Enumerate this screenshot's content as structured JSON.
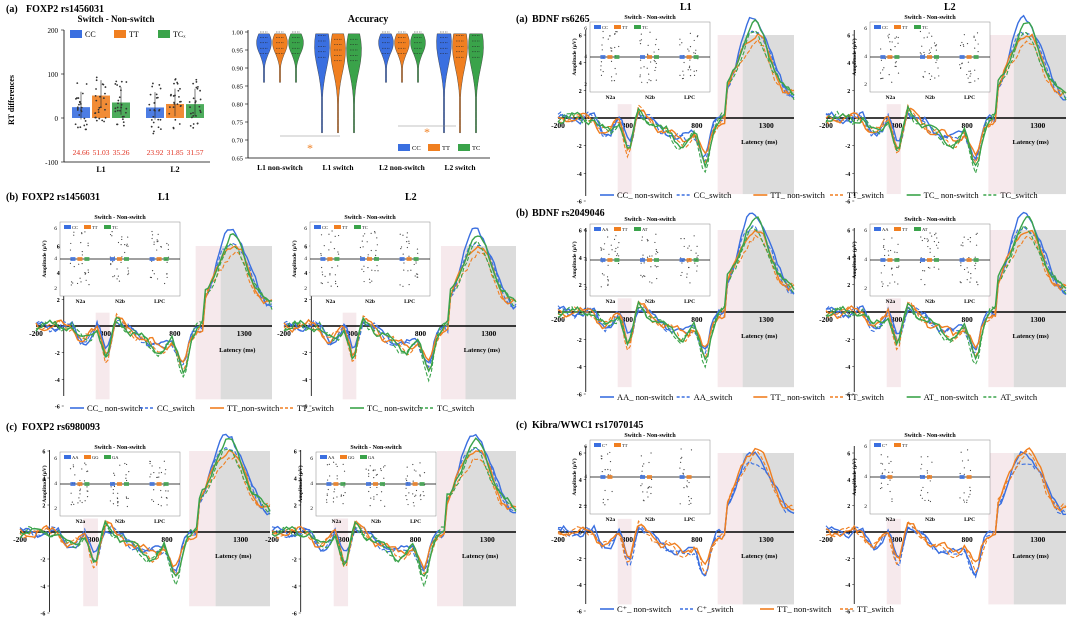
{
  "colors": {
    "CC": "#3a6fe0",
    "TT": "#f07f20",
    "TC": "#3aa34a",
    "marker": "#f08040",
    "axis": "#000000",
    "shade_light": "#f6e9ec",
    "shade_dark": "#dcdcdc",
    "red_text": "#e03020",
    "blue_star": "#5050e8"
  },
  "panels": {
    "top_left_a": {
      "label": "(a)",
      "snp": "FOXP2 rs1456031"
    },
    "top_left_b": {
      "label": "(b)",
      "snp": "FOXP2 rs1456031"
    },
    "top_left_c": {
      "label": "(c)",
      "snp": "FOXP2 rs6980093"
    },
    "right_a": {
      "label": "(a)",
      "snp": "BDNF rs6265"
    },
    "right_b": {
      "label": "(b)",
      "snp": "BDNF rs2049046"
    },
    "right_c": {
      "label": "(c)",
      "snp": "Kibra/WWC1 rs17070145"
    }
  },
  "chart_data": [
    {
      "id": "rt_bar",
      "type": "bar",
      "title": "Switch - Non-switch",
      "ylabel": "RT differences",
      "categories": [
        "L1",
        "L2"
      ],
      "ylim": [
        -100,
        200
      ],
      "yticks": [
        -100,
        0,
        100,
        200
      ],
      "legend": [
        "CC",
        "TT",
        "TCₓ"
      ],
      "series": [
        {
          "name": "CC",
          "values": [
            24.66,
            23.92
          ]
        },
        {
          "name": "TT",
          "values": [
            51.03,
            31.85
          ]
        },
        {
          "name": "TC",
          "values": [
            35.26,
            31.57
          ]
        }
      ],
      "labels": [
        "24.66",
        "51.03",
        "35.26",
        "23.92",
        "31.85",
        "31.57"
      ]
    },
    {
      "id": "accuracy_violin",
      "type": "violin",
      "title": "Accuracy",
      "categories": [
        "L1 non-switch",
        "L1 switch",
        "L2 non-switch",
        "L2 switch"
      ],
      "ylim": [
        0.65,
        1.0
      ],
      "yticks": [
        "0.65",
        "0.70",
        "0.75",
        "0.80",
        "0.85",
        "0.90",
        "0.95",
        "1.00"
      ],
      "legend": [
        "CC",
        "TT",
        "TC"
      ],
      "medians": {
        "CC": [
          0.97,
          0.96,
          0.97,
          0.97
        ],
        "TT": [
          0.97,
          0.95,
          0.97,
          0.96
        ],
        "TC": [
          0.97,
          0.95,
          0.97,
          0.96
        ]
      },
      "significance": "*"
    },
    {
      "id": "erp_panels",
      "type": "line",
      "xlabel": "Latency (ms)",
      "ylabel": "Amplitude (μV)",
      "xticks": [
        "-200",
        "300",
        "800",
        "1300"
      ],
      "yticks": [
        "-6",
        "-4",
        "-2",
        "0",
        "2",
        "4",
        "6"
      ],
      "inset_title": "Switch - Non-switch",
      "inset_components": [
        "N2a",
        "N2b",
        "LPC"
      ],
      "column_titles": [
        "L1",
        "L2"
      ],
      "legends": {
        "top_left_b": [
          "CC_ non-switch",
          "CC_switch",
          "TT_non-switch",
          "TT_switch",
          "TC_ non-switch",
          "TC_switch"
        ],
        "right_a": [
          "CC_ non-switch",
          "CC_switch",
          "TT_ non-switch",
          "TT_switch",
          "TC_ non-switch",
          "TC_switch"
        ],
        "right_b": [
          "AA_ non-switch",
          "AA_switch",
          "TT_ non-switch",
          "TT_switch",
          "AT_ non-switch",
          "AT_switch"
        ],
        "right_c": [
          "C⁺_ non-switch",
          "C⁺_switch",
          "TT_ non-switch",
          "TT_switch"
        ]
      },
      "inset_groups": {
        "foxp2_1456031": [
          "CC",
          "TT",
          "TC"
        ],
        "foxp2_6980093": [
          "AA",
          "GG",
          "GA"
        ],
        "bdnf_6265": [
          "CC",
          "TT",
          "TC"
        ],
        "bdnf_2049046": [
          "AA",
          "TT",
          "AT"
        ],
        "kibra": [
          "C⁺",
          "TT"
        ]
      }
    }
  ]
}
